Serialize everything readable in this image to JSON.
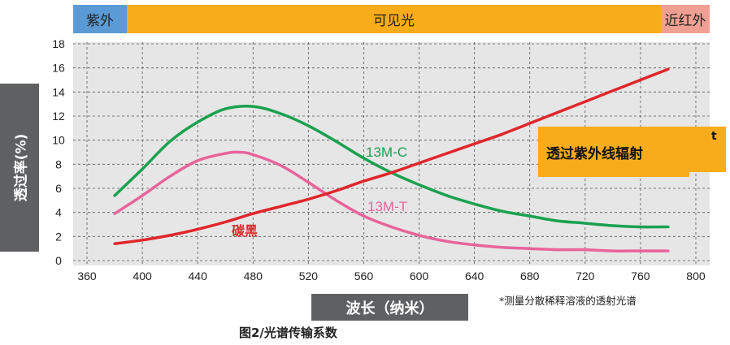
{
  "bands": {
    "uv": "紫外",
    "visible": "可见光",
    "ir": "近红外"
  },
  "callout": {
    "text": "透过紫外线辐射",
    "tail": "t"
  },
  "note": "*测量分散稀释溶液的透射光谱",
  "caption": "图2/光谱传输系数",
  "colors": {
    "green": "#1aa14f",
    "pink": "#e8649a",
    "red": "#e0262b",
    "orange": "#f8ac19",
    "uv": "#5b9bd5",
    "ir": "#f0a093",
    "gray": "#5f6062"
  },
  "chart_data": {
    "type": "line",
    "xlabel": "波长（纳米）",
    "ylabel": "透过率(%)",
    "xlim": [
      350,
      810
    ],
    "ylim": [
      0,
      18
    ],
    "x_ticks": [
      360,
      400,
      440,
      480,
      520,
      560,
      600,
      640,
      680,
      720,
      760,
      800
    ],
    "y_ticks": [
      0,
      2,
      4,
      6,
      8,
      10,
      12,
      14,
      16,
      18
    ],
    "grid": true,
    "series": [
      {
        "name": "13M-C",
        "color": "#1aa14f",
        "x": [
          380,
          400,
          420,
          440,
          460,
          480,
          500,
          520,
          540,
          560,
          580,
          600,
          620,
          640,
          660,
          680,
          700,
          720,
          740,
          760,
          780
        ],
        "y": [
          5.4,
          7.6,
          9.9,
          11.5,
          12.6,
          12.8,
          12.2,
          11.2,
          9.9,
          8.5,
          7.3,
          6.3,
          5.4,
          4.7,
          4.1,
          3.7,
          3.3,
          3.1,
          2.9,
          2.8,
          2.8
        ]
      },
      {
        "name": "13M-T",
        "color": "#e8649a",
        "x": [
          380,
          400,
          420,
          440,
          460,
          470,
          480,
          500,
          520,
          540,
          560,
          580,
          600,
          620,
          640,
          660,
          680,
          700,
          720,
          740,
          760,
          780
        ],
        "y": [
          3.9,
          5.4,
          7.0,
          8.3,
          8.9,
          9.0,
          8.8,
          7.9,
          6.5,
          5.0,
          3.7,
          2.8,
          2.1,
          1.6,
          1.3,
          1.1,
          1.0,
          0.9,
          0.9,
          0.8,
          0.8,
          0.8
        ]
      },
      {
        "name": "碳黑",
        "color": "#e0262b",
        "x": [
          380,
          400,
          420,
          440,
          460,
          480,
          500,
          520,
          540,
          560,
          580,
          600,
          620,
          640,
          660,
          680,
          700,
          720,
          740,
          760,
          780
        ],
        "y": [
          1.4,
          1.7,
          2.1,
          2.6,
          3.2,
          3.9,
          4.5,
          5.1,
          5.8,
          6.6,
          7.3,
          8.1,
          8.9,
          9.7,
          10.5,
          11.4,
          12.3,
          13.2,
          14.1,
          15.0,
          15.9
        ]
      }
    ],
    "series_labels": [
      "13M-C",
      "13M-T",
      "碳黑"
    ]
  }
}
